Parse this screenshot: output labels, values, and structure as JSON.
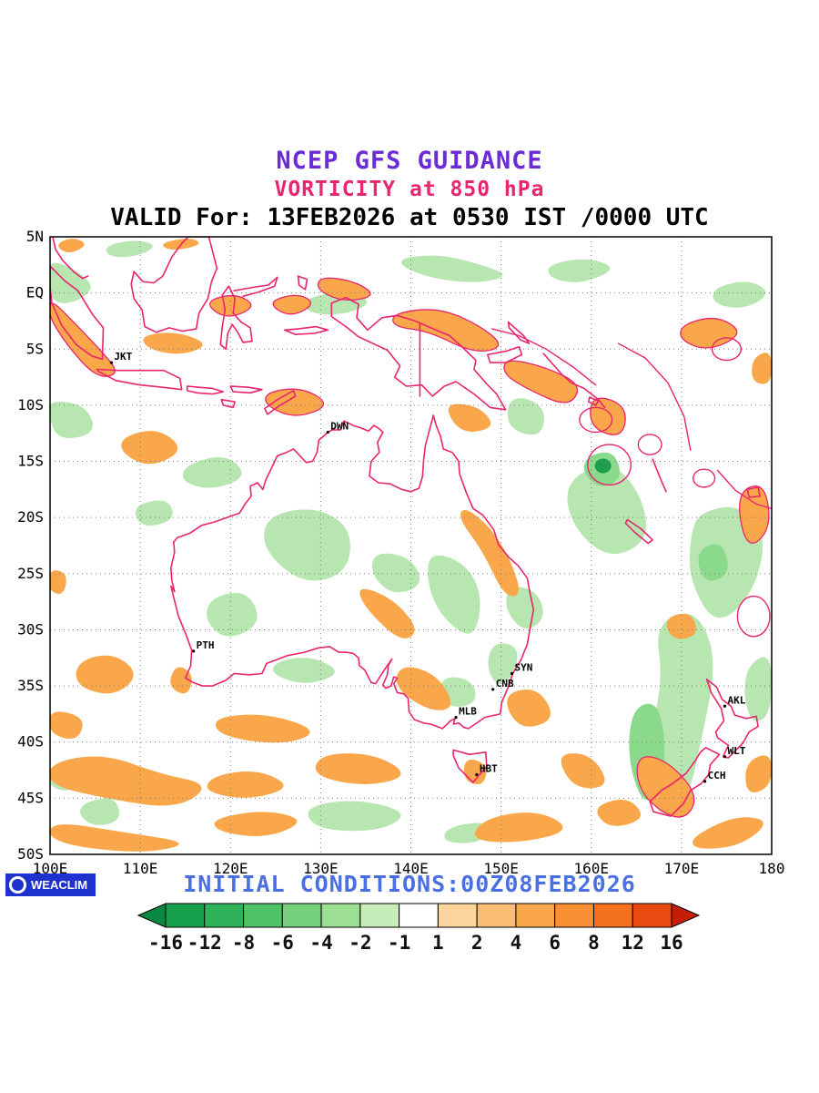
{
  "titles": {
    "line1": "NCEP GFS GUIDANCE",
    "line2": "VORTICITY at 850 hPa",
    "line3": "VALID For: 13FEB2026 at 0530 IST /0000 UTC"
  },
  "map": {
    "lon_min": 100,
    "lon_max": 180,
    "lat_min": -50,
    "lat_max": 5,
    "lat_ticks": [
      {
        "lat": 5,
        "label": "5N"
      },
      {
        "lat": 0,
        "label": "EQ"
      },
      {
        "lat": -5,
        "label": "5S"
      },
      {
        "lat": -10,
        "label": "10S"
      },
      {
        "lat": -15,
        "label": "15S"
      },
      {
        "lat": -20,
        "label": "20S"
      },
      {
        "lat": -25,
        "label": "25S"
      },
      {
        "lat": -30,
        "label": "30S"
      },
      {
        "lat": -35,
        "label": "35S"
      },
      {
        "lat": -40,
        "label": "40S"
      },
      {
        "lat": -45,
        "label": "45S"
      },
      {
        "lat": -50,
        "label": "50S"
      }
    ],
    "lon_ticks": [
      {
        "lon": 100,
        "label": "100E"
      },
      {
        "lon": 110,
        "label": "110E"
      },
      {
        "lon": 120,
        "label": "120E"
      },
      {
        "lon": 130,
        "label": "130E"
      },
      {
        "lon": 140,
        "label": "140E"
      },
      {
        "lon": 150,
        "label": "150E"
      },
      {
        "lon": 160,
        "label": "160E"
      },
      {
        "lon": 170,
        "label": "170E"
      },
      {
        "lon": 180,
        "label": "180"
      }
    ],
    "cities": [
      {
        "label": "JKT",
        "lon": 106.8,
        "lat": -6.2
      },
      {
        "label": "DWN",
        "lon": 130.8,
        "lat": -12.4
      },
      {
        "label": "PTH",
        "lon": 115.9,
        "lat": -31.9
      },
      {
        "label": "SYN",
        "lon": 151.2,
        "lat": -33.9
      },
      {
        "label": "CNB",
        "lon": 149.1,
        "lat": -35.3
      },
      {
        "label": "MLB",
        "lon": 145.0,
        "lat": -37.8
      },
      {
        "label": "HBT",
        "lon": 147.3,
        "lat": -42.9
      },
      {
        "label": "AKL",
        "lon": 174.8,
        "lat": -36.8
      },
      {
        "label": "WLT",
        "lon": 174.8,
        "lat": -41.3
      },
      {
        "label": "CCH",
        "lon": 172.6,
        "lat": -43.5
      }
    ]
  },
  "colorbar": {
    "labels": [
      "-16",
      "-12",
      "-8",
      "-6",
      "-4",
      "-2",
      "-1",
      "1",
      "2",
      "4",
      "6",
      "8",
      "12",
      "16"
    ],
    "colors": [
      "#0a8741",
      "#16a04e",
      "#2eb35a",
      "#4fc268",
      "#74d07b",
      "#9cdf93",
      "#c6edb9",
      "#ffffff",
      "#fcd59c",
      "#fbbd72",
      "#faa64b",
      "#f88f33",
      "#f4711f",
      "#e84a10",
      "#c41e06"
    ]
  },
  "footer": {
    "badge": "WEACLIM",
    "initial_conditions": "INITIAL CONDITIONS:00Z08FEB2026"
  },
  "colors": {
    "title1": "#6b2bd6",
    "title2": "#e8256e",
    "title3": "#000000",
    "coastline": "#e8256e",
    "grid": "#7d7d7d",
    "frame": "#000000",
    "shade_green_light": "#b7e6b0",
    "shade_green_med": "#8bd98b",
    "shade_green_dark": "#1f9e4d",
    "shade_orange": "#f9a74a",
    "tick_text": "#000000",
    "city_text": "#000000",
    "footer_blue": "#4a6fe0",
    "badge_bg": "#1d32cf"
  }
}
